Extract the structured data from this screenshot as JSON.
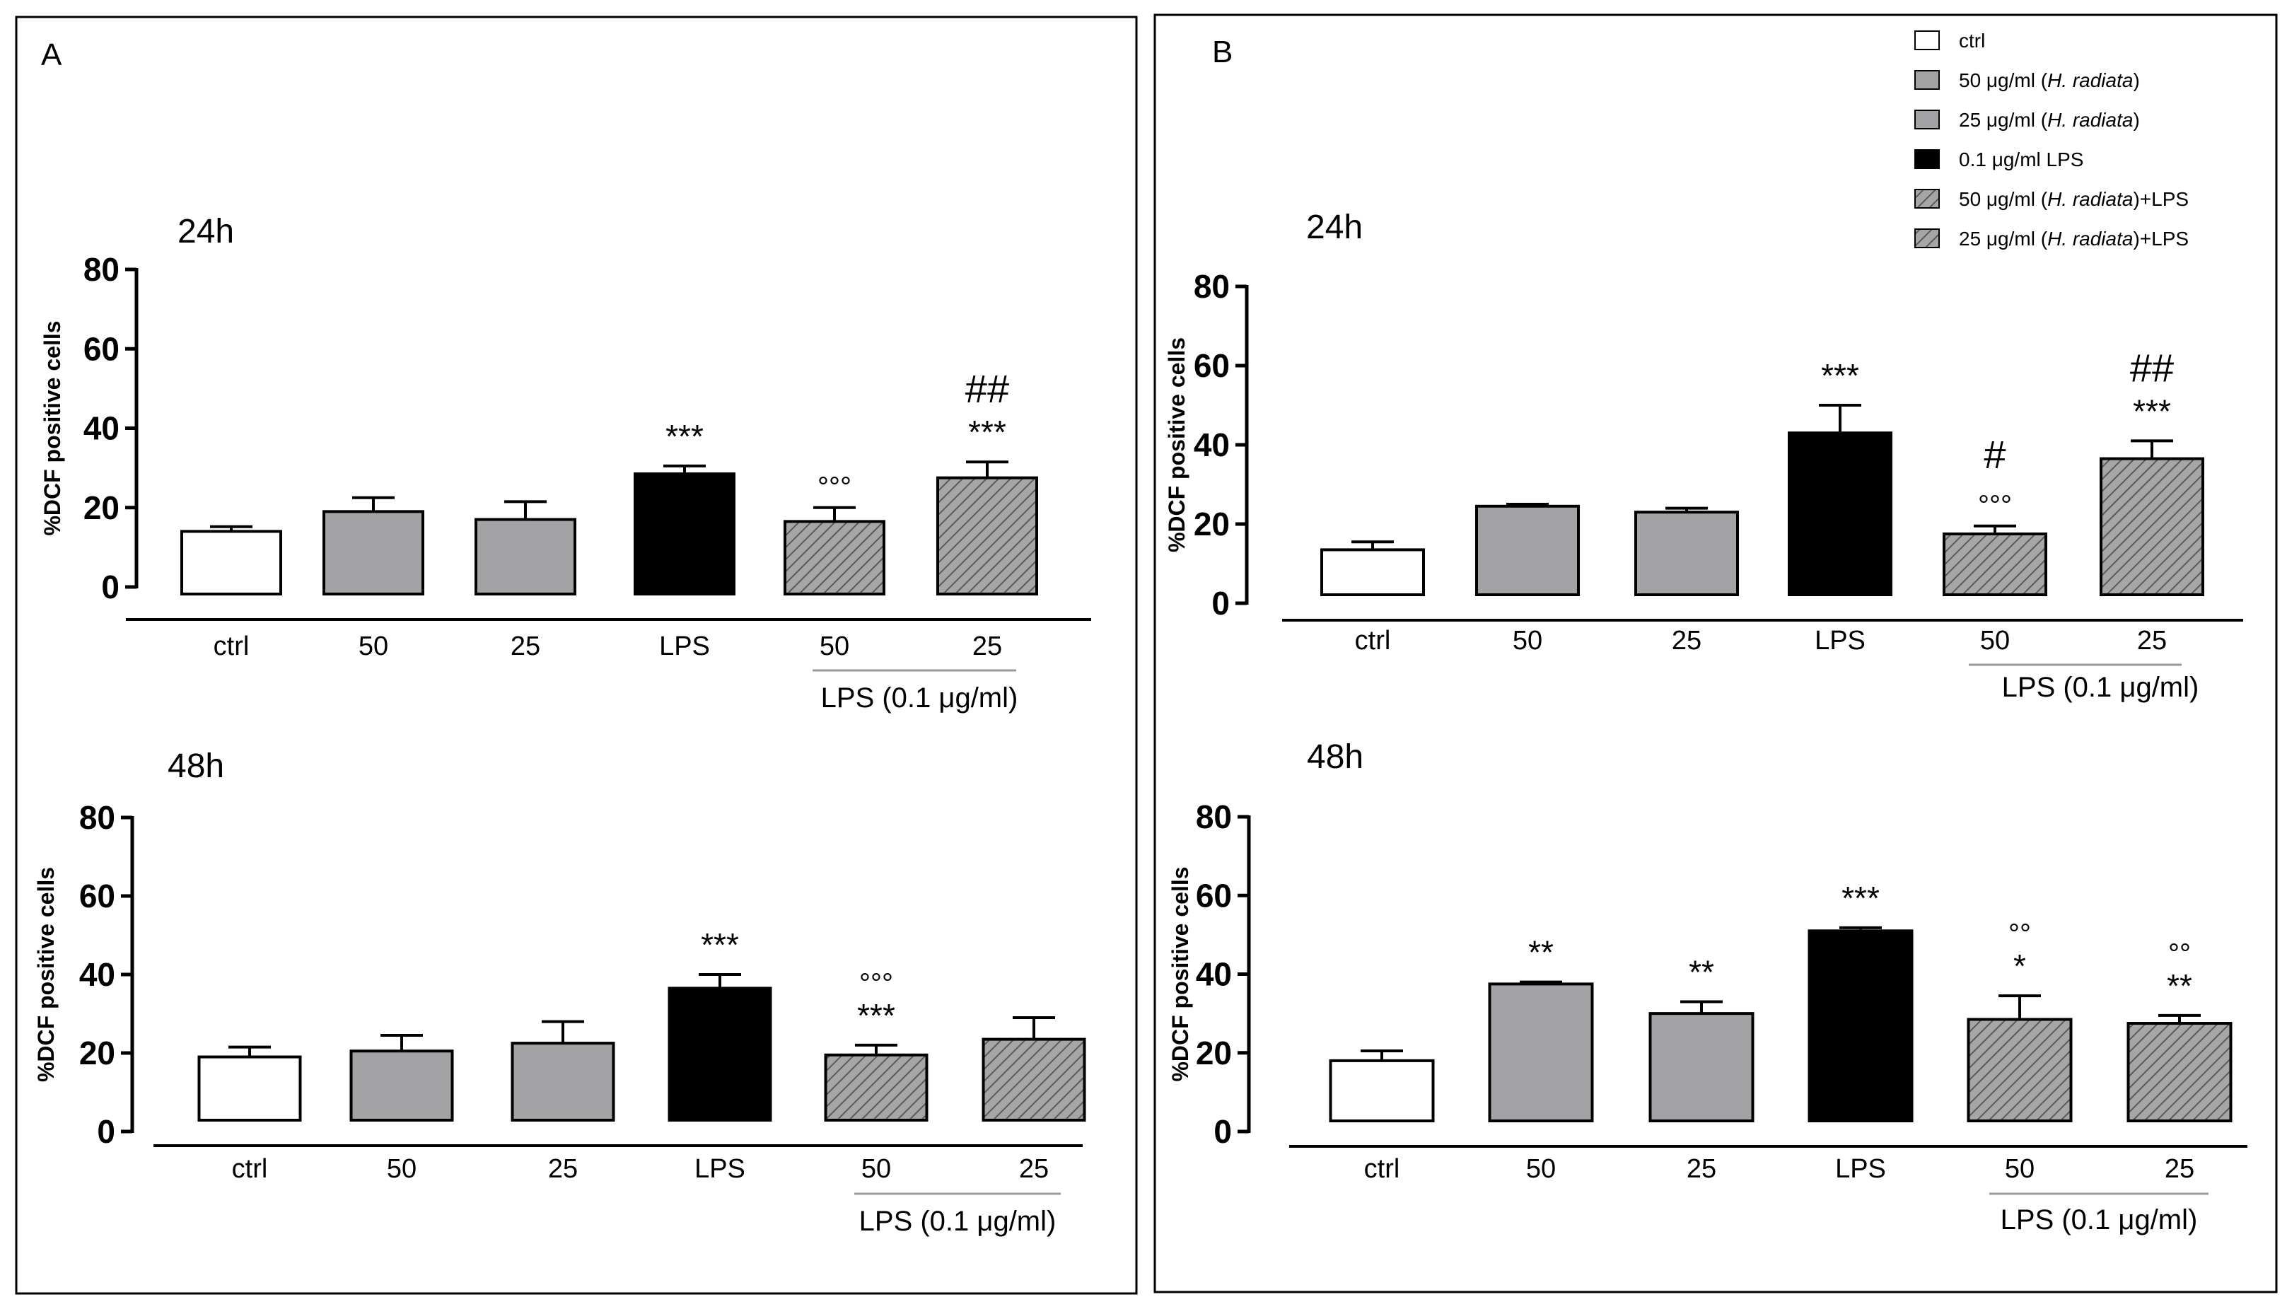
{
  "colors": {
    "ctrl": "#ffffff",
    "hr50": "#a3a3a5",
    "hr25": "#a3a3a5",
    "lps": "#000000",
    "hatch_bg": "#a6a6a8",
    "hatch_line": "#5a5a5a",
    "frame": "#000000"
  },
  "legend": [
    {
      "name": "ctrl",
      "text": "ctrl",
      "style": "ctrl"
    },
    {
      "name": "hr50",
      "text": "50 μg/ml (H. radiata)",
      "pre": "50 μg/ml (",
      "italic": "H. radiata",
      "post": ")",
      "style": "hr50"
    },
    {
      "name": "hr25",
      "text": "25 μg/ml (H. radiata)",
      "pre": "25 μg/ml (",
      "italic": "H. radiata",
      "post": ")",
      "style": "hr25"
    },
    {
      "name": "lps",
      "text": "0.1 μg/ml LPS",
      "pre": "0.1 μg/ml LPS",
      "italic": "",
      "post": "",
      "style": "lps"
    },
    {
      "name": "hr50-lps",
      "text": "50 μg/ml (H. radiata)+LPS",
      "pre": "50 μg/ml (",
      "italic": "H. radiata",
      "post": ")+LPS",
      "style": "hatch"
    },
    {
      "name": "hr25-lps",
      "text": "25 μg/ml (H. radiata)+LPS",
      "pre": "25 μg/ml (",
      "italic": "H. radiata",
      "post": ")+LPS",
      "style": "hatch"
    }
  ],
  "chart_data": [
    {
      "id": "A-24h",
      "panel": "A",
      "panel_label": "A",
      "title": "24h",
      "type": "bar",
      "ylabel": "%DCF positive cells",
      "ylim": [
        0,
        80
      ],
      "yticks": [
        "0",
        "20",
        "40",
        "60",
        "80"
      ],
      "categories": [
        "ctrl",
        "50",
        "25",
        "LPS",
        "50",
        "25"
      ],
      "group_label": "LPS (0.1 μg/ml)",
      "values": [
        14,
        19,
        17,
        28.5,
        16.5,
        27.5
      ],
      "errors": [
        1.2,
        3.5,
        4.5,
        2,
        3.5,
        4
      ],
      "styles": [
        "ctrl",
        "hr50",
        "hr25",
        "lps",
        "hatch",
        "hatch"
      ],
      "annotations": [
        [],
        [],
        [],
        [
          "***"
        ],
        [
          "°°°"
        ],
        [
          "***",
          "##"
        ]
      ]
    },
    {
      "id": "A-48h",
      "panel": "A",
      "title": "48h",
      "type": "bar",
      "ylabel": "%DCF positive cells",
      "ylim": [
        0,
        80
      ],
      "yticks": [
        "0",
        "20",
        "40",
        "60",
        "80"
      ],
      "categories": [
        "ctrl",
        "50",
        "25",
        "LPS",
        "50",
        "25"
      ],
      "group_label": "LPS (0.1 μg/ml)",
      "values": [
        19,
        20.5,
        22.5,
        36.5,
        19.5,
        23.5
      ],
      "errors": [
        2.5,
        4,
        5.5,
        3.5,
        2.5,
        5.5
      ],
      "styles": [
        "ctrl",
        "hr50",
        "hr25",
        "lps",
        "hatch",
        "hatch"
      ],
      "annotations": [
        [],
        [],
        [],
        [
          "***"
        ],
        [
          "***",
          "°°°"
        ],
        []
      ]
    },
    {
      "id": "B-24h",
      "panel": "B",
      "panel_label": "B",
      "title": "24h",
      "type": "bar",
      "ylabel": "%DCF positive cells",
      "ylim": [
        0,
        80
      ],
      "yticks": [
        "0",
        "20",
        "40",
        "60",
        "80"
      ],
      "categories": [
        "ctrl",
        "50",
        "25",
        "LPS",
        "50",
        "25"
      ],
      "group_label": "LPS (0.1 μg/ml)",
      "values": [
        13.5,
        24.5,
        23,
        43,
        17.5,
        36.5
      ],
      "errors": [
        2,
        0.5,
        1,
        7,
        2,
        4.5
      ],
      "styles": [
        "ctrl",
        "hr50",
        "hr25",
        "lps",
        "hatch",
        "hatch"
      ],
      "annotations": [
        [],
        [],
        [],
        [
          "***"
        ],
        [
          "°°°",
          "#"
        ],
        [
          "***",
          "##"
        ]
      ]
    },
    {
      "id": "B-48h",
      "panel": "B",
      "title": "48h",
      "type": "bar",
      "ylabel": "%DCF positive cells",
      "ylim": [
        0,
        80
      ],
      "yticks": [
        "0",
        "20",
        "40",
        "60",
        "80"
      ],
      "categories": [
        "ctrl",
        "50",
        "25",
        "LPS",
        "50",
        "25"
      ],
      "group_label": "LPS (0.1 μg/ml)",
      "values": [
        18,
        37.5,
        30,
        51,
        28.5,
        27.5
      ],
      "errors": [
        2.5,
        0.5,
        3,
        0.8,
        6,
        2
      ],
      "styles": [
        "ctrl",
        "hr50",
        "hr25",
        "lps",
        "hatch",
        "hatch"
      ],
      "annotations": [
        [],
        [
          "**"
        ],
        [
          "**"
        ],
        [
          "***"
        ],
        [
          "*",
          "°°"
        ],
        [
          "**",
          "°°"
        ]
      ]
    }
  ]
}
